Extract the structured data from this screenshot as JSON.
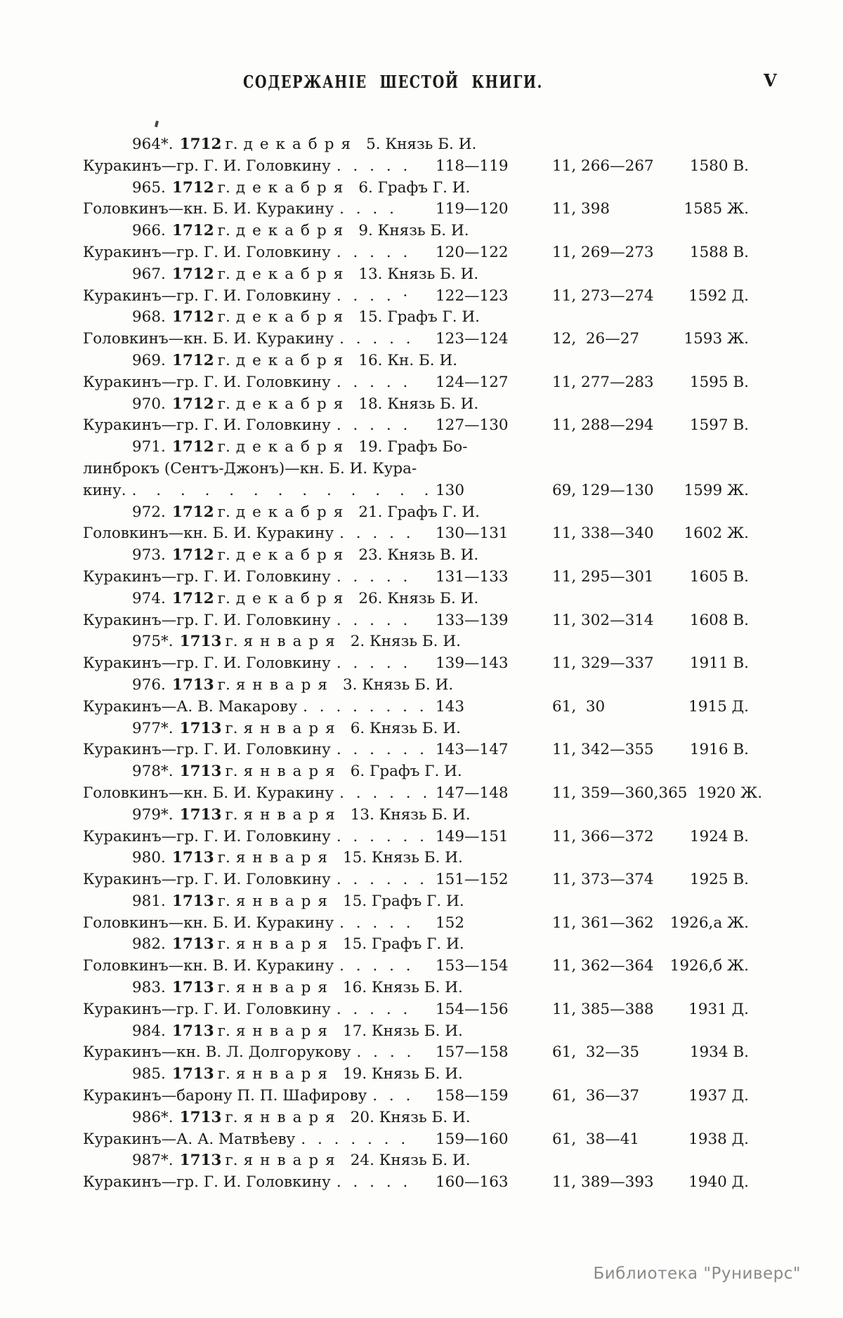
{
  "page": {
    "title": "СОДЕРЖАНІЕ ШЕСТОЙ КНИГИ.",
    "page_number": "V",
    "watermark": "Библиотека \"Руниверс\""
  },
  "toc": {
    "lines": [
      {
        "type": "head",
        "num": "964*.",
        "year": "1712",
        "g": "г.",
        "month": "декабря",
        "rest": "5. Князь Б. И."
      },
      {
        "type": "data",
        "name": "Куракинъ—гр. Г. И. Головкину",
        "dots": ". . . . .",
        "pages": "118—119",
        "vol": "11, 266—267",
        "ref": "1580 В."
      },
      {
        "type": "head",
        "num": "965.",
        "year": "1712",
        "g": "г.",
        "month": "декабря",
        "rest": "6. Графъ Г. И."
      },
      {
        "type": "data",
        "name": "Головкинъ—кн. Б. И. Куракину",
        "dots": ". . . .",
        "pages": "119—120",
        "vol": "11, 398",
        "ref": "1585 Ж."
      },
      {
        "type": "head",
        "num": "966.",
        "year": "1712",
        "g": "г.",
        "month": "декабря",
        "rest": "9. Князь Б. И."
      },
      {
        "type": "data",
        "name": "Куракинъ—гр. Г. И. Головкину",
        "dots": ". . . . .",
        "pages": "120—122",
        "vol": "11, 269—273",
        "ref": "1588 В."
      },
      {
        "type": "head",
        "num": "967.",
        "year": "1712",
        "g": "г.",
        "month": "декабря",
        "rest": "13. Князь Б. И."
      },
      {
        "type": "data",
        "name": "Куракинъ—гр. Г. И. Головкину",
        "dots": ". . . . ·",
        "pages": "122—123",
        "vol": "11, 273—274",
        "ref": "1592 Д."
      },
      {
        "type": "head",
        "num": "968.",
        "year": "1712",
        "g": "г.",
        "month": "декабря",
        "rest": "15. Графъ Г. И."
      },
      {
        "type": "data",
        "name": "Головкинъ—кн. Б. И. Куракину",
        "dots": ". . . . .",
        "pages": "123—124",
        "vol": "12,  26—27",
        "ref": "1593 Ж."
      },
      {
        "type": "head",
        "num": "969.",
        "year": "1712",
        "g": "г.",
        "month": "декабря",
        "rest": "16. Кн. Б. И."
      },
      {
        "type": "data",
        "name": "Куракинъ—гр. Г. И. Головкину",
        "dots": ". . . . .",
        "pages": "124—127",
        "vol": "11, 277—283",
        "ref": "1595 В."
      },
      {
        "type": "head",
        "num": "970.",
        "year": "1712",
        "g": "г.",
        "month": "декабря",
        "rest": "18. Князь Б. И."
      },
      {
        "type": "data",
        "name": "Куракинъ—гр. Г. И. Головкину",
        "dots": ". . . . .",
        "pages": "127—130",
        "vol": "11, 288—294",
        "ref": "1597 В."
      },
      {
        "type": "head",
        "num": "971.",
        "year": "1712",
        "g": "г.",
        "month": "декабря",
        "rest": "19. Графъ Бо-"
      },
      {
        "type": "cont",
        "text": "линброкъ (Сентъ-Джонъ)—кн. Б. И. Кура-"
      },
      {
        "type": "data",
        "wide": true,
        "name": "кину.",
        "dots": ". . . . . . . . . . . . . . . . .",
        "pages": "130",
        "vol": "69, 129—130",
        "ref": "1599 Ж."
      },
      {
        "type": "head",
        "num": "972.",
        "year": "1712",
        "g": "г.",
        "month": "декабря",
        "rest": "21. Графъ Г. И."
      },
      {
        "type": "data",
        "name": "Головкинъ—кн. Б. И. Куракину",
        "dots": ". . . . .",
        "pages": "130—131",
        "vol": "11, 338—340",
        "ref": "1602 Ж."
      },
      {
        "type": "head",
        "num": "973.",
        "year": "1712",
        "g": "г.",
        "month": "декабря",
        "rest": "23. Князь В. И."
      },
      {
        "type": "data",
        "name": "Куракинъ—гр. Г. И. Головкину",
        "dots": ". . . . .",
        "pages": "131—133",
        "vol": "11, 295—301",
        "ref": "1605 В."
      },
      {
        "type": "head",
        "num": "974.",
        "year": "1712",
        "g": "г.",
        "month": "декабря",
        "rest": "26. Князь Б. И."
      },
      {
        "type": "data",
        "name": "Куракинъ—гр. Г. И. Головкину",
        "dots": ". . . . .",
        "pages": "133—139",
        "vol": "11, 302—314",
        "ref": "1608 В."
      },
      {
        "type": "head",
        "num": "975*.",
        "year": "1713",
        "g": "г.",
        "month": "января",
        "rest": "2. Князь Б. И."
      },
      {
        "type": "data",
        "name": "Куракинъ—гр. Г. И. Головкину",
        "dots": ". . . . .",
        "pages": "139—143",
        "vol": "11, 329—337",
        "ref": "1911 В."
      },
      {
        "type": "head",
        "num": "976.",
        "year": "1713",
        "g": "г.",
        "month": "января",
        "rest": "3. Князь Б. И."
      },
      {
        "type": "data",
        "name": "Куракинъ—А. В. Макарову",
        "dots": ". . . . . . . .",
        "pages": "143",
        "vol": "61,  30",
        "ref": "1915 Д."
      },
      {
        "type": "head",
        "num": "977*.",
        "year": "1713",
        "g": "г.",
        "month": "января",
        "rest": "6. Князь Б. И."
      },
      {
        "type": "data",
        "name": "Куракинъ—гр. Г. И. Головкину",
        "dots": ". . . . . .",
        "pages": "143—147",
        "vol": "11, 342—355",
        "ref": "1916 В."
      },
      {
        "type": "head",
        "num": "978*.",
        "year": "1713",
        "g": "г.",
        "month": "января",
        "rest": "6. Графъ Г. И."
      },
      {
        "type": "data",
        "name": "Головкинъ—кн. Б. И. Куракину",
        "dots": ". . . . . .",
        "pages": "147—148",
        "vol": "11, 359—360,365",
        "ref": "1920 Ж."
      },
      {
        "type": "head",
        "num": "979*.",
        "year": "1713",
        "g": "г.",
        "month": "января",
        "rest": "13. Князь Б. И."
      },
      {
        "type": "data",
        "name": "Куракинъ—гр. Г. И. Головкину",
        "dots": ". . . . . .",
        "pages": "149—151",
        "vol": "11, 366—372",
        "ref": "1924 В."
      },
      {
        "type": "head",
        "num": "980.",
        "year": "1713",
        "g": "г.",
        "month": "января",
        "rest": "15. Князь Б. И."
      },
      {
        "type": "data",
        "name": "Куракинъ—гр. Г. И. Головкину",
        "dots": ". . . . . .",
        "pages": "151—152",
        "vol": "11, 373—374",
        "ref": "1925 В."
      },
      {
        "type": "head",
        "num": "981.",
        "year": "1713",
        "g": "г.",
        "month": "января",
        "rest": "15. Графъ Г. И."
      },
      {
        "type": "data",
        "name": "Головкинъ—кн. Б. И. Куракину",
        "dots": ". . . . .",
        "pages": "152",
        "vol": "11, 361—362",
        "ref": "1926,а Ж."
      },
      {
        "type": "head",
        "num": "982.",
        "year": "1713",
        "g": "г.",
        "month": "января",
        "rest": "15. Графъ Г. И."
      },
      {
        "type": "data",
        "name": "Головкинъ—кн. В. И. Куракину",
        "dots": ". . . . .",
        "pages": "153—154",
        "vol": "11, 362—364",
        "ref": "1926,б Ж."
      },
      {
        "type": "head",
        "num": "983.",
        "year": "1713",
        "g": "г.",
        "month": "января",
        "rest": "16. Князь Б. И."
      },
      {
        "type": "data",
        "name": "Куракинъ—гр. Г. И. Головкину",
        "dots": ". . . . .",
        "pages": "154—156",
        "vol": "11, 385—388",
        "ref": "1931 Д."
      },
      {
        "type": "head",
        "num": "984.",
        "year": "1713",
        "g": "г.",
        "month": "января",
        "rest": "17. Князь Б. И."
      },
      {
        "type": "data",
        "name": "Куракинъ—кн. В. Л. Долгорукову",
        "dots": ". . . .",
        "pages": "157—158",
        "vol": "61,  32—35",
        "ref": "1934 В."
      },
      {
        "type": "head",
        "num": "985.",
        "year": "1713",
        "g": "г.",
        "month": "января",
        "rest": "19. Князь Б. И."
      },
      {
        "type": "data",
        "name": "Куракинъ—барону П. П. Шафирову",
        "dots": ". . .",
        "pages": "158—159",
        "vol": "61,  36—37",
        "ref": "1937 Д."
      },
      {
        "type": "head",
        "num": "986*.",
        "year": "1713",
        "g": "г.",
        "month": "января",
        "rest": "20. Князь Б. И."
      },
      {
        "type": "data",
        "name": "Куракинъ—А. А. Матвѣеву",
        "dots": ". . . . . . .",
        "pages": "159—160",
        "vol": "61,  38—41",
        "ref": "1938 Д."
      },
      {
        "type": "head",
        "num": "987*.",
        "year": "1713",
        "g": "г.",
        "month": "января",
        "rest": "24. Князь Б. И."
      },
      {
        "type": "data",
        "name": "Куракинъ—гр. Г. И. Головкину",
        "dots": ". . . . .",
        "pages": "160—163",
        "vol": "11, 389—393",
        "ref": "1940 Д."
      }
    ]
  }
}
